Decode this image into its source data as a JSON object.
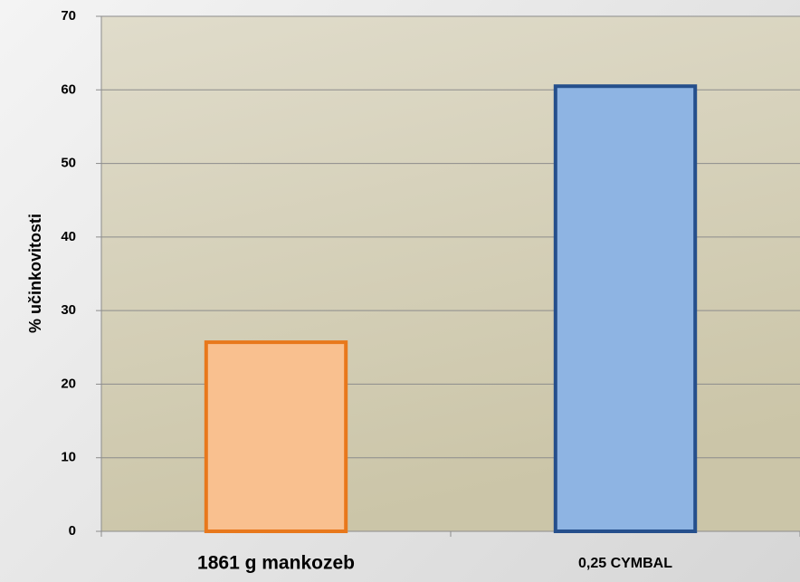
{
  "chart_data": {
    "type": "bar",
    "y_label": "% učinkovitosti",
    "categories": [
      "1861 g mankozeb",
      "0,25 CYMBAL"
    ],
    "values": [
      25.7,
      60.5
    ],
    "colors": [
      "#f9c08f",
      "#8eb4e3"
    ],
    "edge_colors": [
      "#e8781c",
      "#254f8c"
    ],
    "ylim": [
      0,
      70
    ],
    "yticks": [
      0,
      10,
      20,
      30,
      40,
      50,
      60,
      70
    ],
    "grid": true
  }
}
